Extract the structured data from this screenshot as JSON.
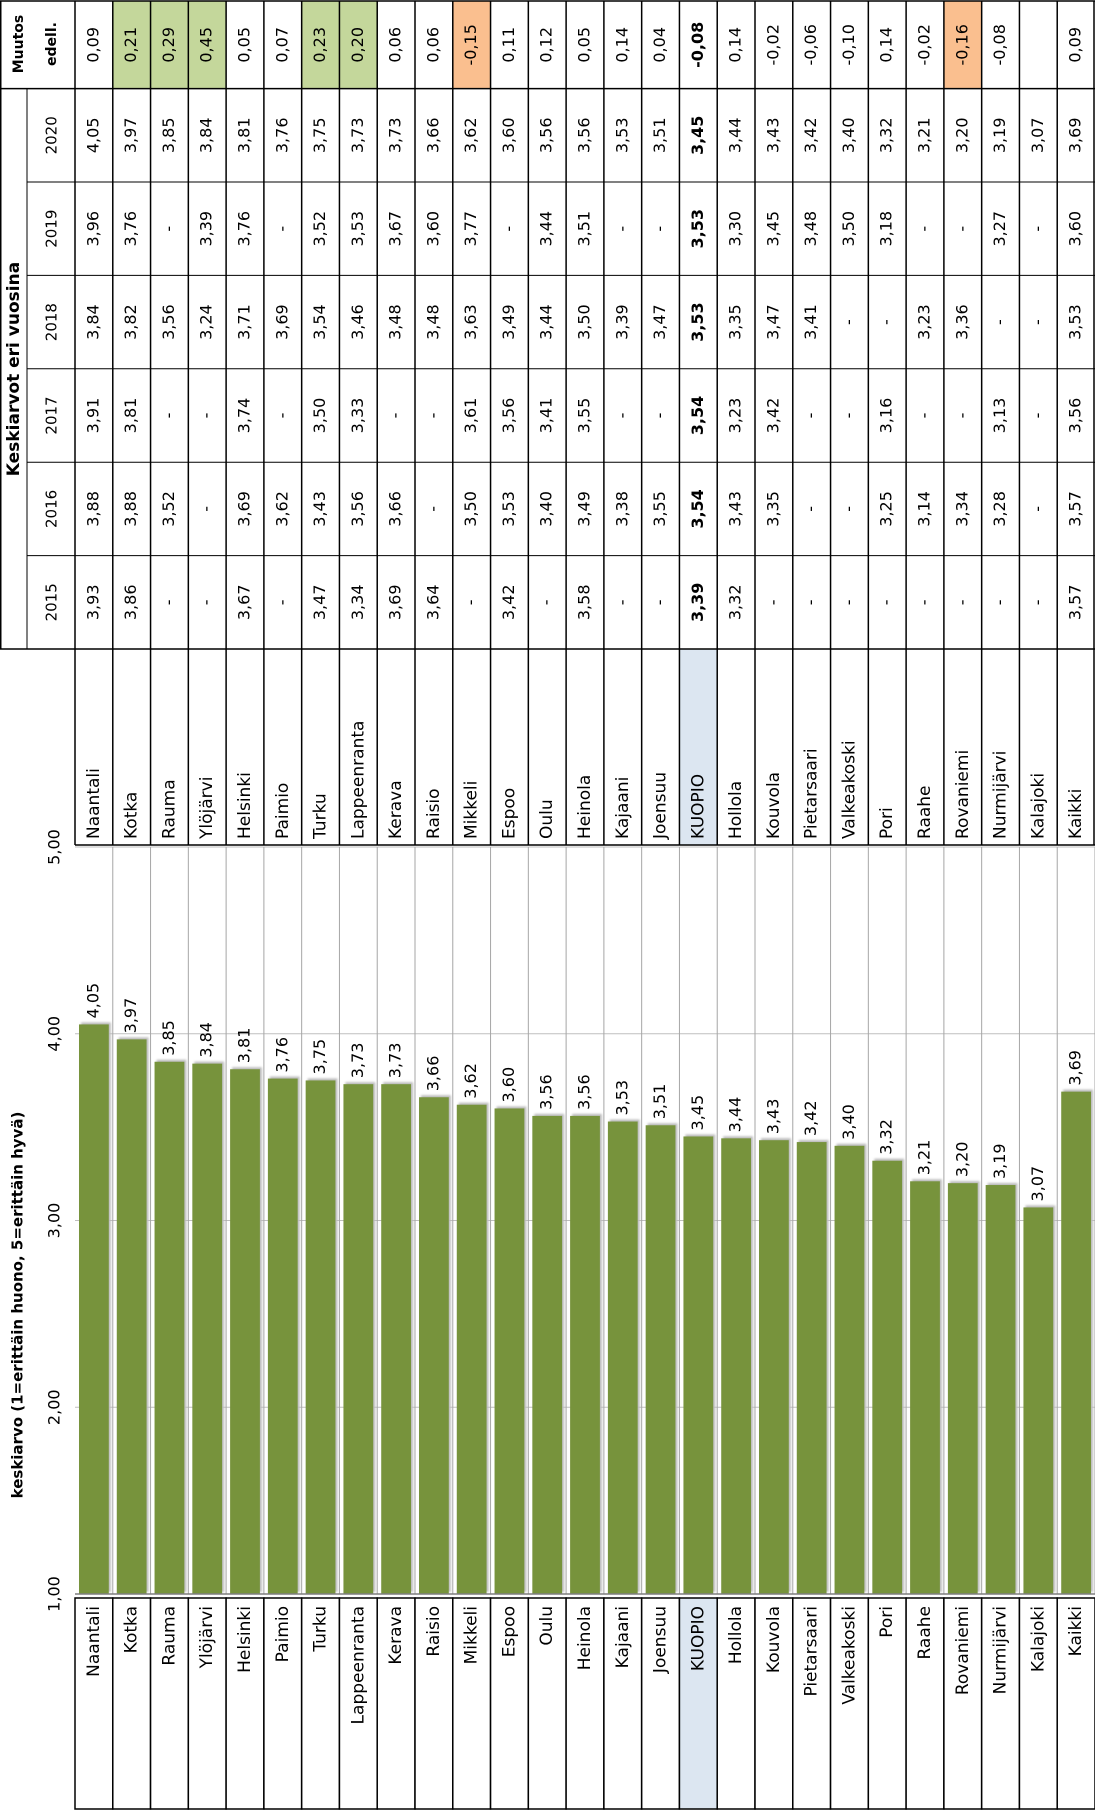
{
  "chart_data": {
    "type": "bar",
    "y_label": "keskiarvo (1=erittäin huono, 5=erittäin hyvä)",
    "categories": [
      "Naantali",
      "Kotka",
      "Rauma",
      "Ylöjärvi",
      "Helsinki",
      "Paimio",
      "Turku",
      "Lappeenranta",
      "Kerava",
      "Raisio",
      "Mikkeli",
      "Espoo",
      "Oulu",
      "Heinola",
      "Kajaani",
      "Joensuu",
      "KUOPIO",
      "Hollola",
      "Kouvola",
      "Pietarsaari",
      "Valkeakoski",
      "Pori",
      "Raahe",
      "Rovaniemi",
      "Nurmijärvi",
      "Kalajoki",
      "Kaikki"
    ],
    "values": [
      4.05,
      3.97,
      3.85,
      3.84,
      3.81,
      3.76,
      3.75,
      3.73,
      3.73,
      3.66,
      3.62,
      3.6,
      3.56,
      3.56,
      3.53,
      3.51,
      3.45,
      3.44,
      3.43,
      3.42,
      3.4,
      3.32,
      3.21,
      3.2,
      3.19,
      3.07,
      3.69
    ],
    "value_labels": [
      "4,05",
      "3,97",
      "3,85",
      "3,84",
      "3,81",
      "3,76",
      "3,75",
      "3,73",
      "3,73",
      "3,66",
      "3,62",
      "3,60",
      "3,56",
      "3,56",
      "3,53",
      "3,51",
      "3,45",
      "3,44",
      "3,43",
      "3,42",
      "3,40",
      "3,32",
      "3,21",
      "3,20",
      "3,19",
      "3,07",
      "3,69"
    ],
    "color": "#77933c",
    "ylim": [
      1,
      5
    ],
    "yticks": [
      {
        "value": 1,
        "label": "1,00"
      },
      {
        "value": 2,
        "label": "2,00"
      },
      {
        "value": 3,
        "label": "3,00"
      },
      {
        "value": 4,
        "label": "4,00"
      },
      {
        "value": 5,
        "label": "5,00"
      }
    ],
    "grid": true,
    "highlight": "KUOPIO",
    "highlight_color": "#dce6f1"
  },
  "table": {
    "title": "Keskiarvot eri vuosina",
    "columns": [
      "2015",
      "2016",
      "2017",
      "2018",
      "2019",
      "2020"
    ],
    "change_header": [
      "Muutos",
      "edell."
    ],
    "highlight": "KUOPIO",
    "highlight_color": "#dce6f1",
    "rows": [
      {
        "name": "Naantali",
        "values": [
          "3,93",
          "3,88",
          "3,91",
          "3,84",
          "3,96",
          "4,05"
        ],
        "change": "0,09"
      },
      {
        "name": "Kotka",
        "values": [
          "3,86",
          "3,88",
          "3,81",
          "3,82",
          "3,76",
          "3,97"
        ],
        "change": "0,21",
        "change_color": "#c4d79b"
      },
      {
        "name": "Rauma",
        "values": [
          "-",
          "3,52",
          "-",
          "3,56",
          "-",
          "3,85"
        ],
        "change": "0,29",
        "change_color": "#c4d79b"
      },
      {
        "name": "Ylöjärvi",
        "values": [
          "-",
          "-",
          "-",
          "3,24",
          "3,39",
          "3,84"
        ],
        "change": "0,45",
        "change_color": "#c4d79b"
      },
      {
        "name": "Helsinki",
        "values": [
          "3,67",
          "3,69",
          "3,74",
          "3,71",
          "3,76",
          "3,81"
        ],
        "change": "0,05"
      },
      {
        "name": "Paimio",
        "values": [
          "-",
          "3,62",
          "-",
          "3,69",
          "-",
          "3,76"
        ],
        "change": "0,07"
      },
      {
        "name": "Turku",
        "values": [
          "3,47",
          "3,43",
          "3,50",
          "3,54",
          "3,52",
          "3,75"
        ],
        "change": "0,23",
        "change_color": "#c4d79b"
      },
      {
        "name": "Lappeenranta",
        "values": [
          "3,34",
          "3,56",
          "3,33",
          "3,46",
          "3,53",
          "3,73"
        ],
        "change": "0,20",
        "change_color": "#c4d79b"
      },
      {
        "name": "Kerava",
        "values": [
          "3,69",
          "3,66",
          "-",
          "3,48",
          "3,67",
          "3,73"
        ],
        "change": "0,06"
      },
      {
        "name": "Raisio",
        "values": [
          "3,64",
          "-",
          "-",
          "3,48",
          "3,60",
          "3,66"
        ],
        "change": "0,06"
      },
      {
        "name": "Mikkeli",
        "values": [
          "-",
          "3,50",
          "3,61",
          "3,63",
          "3,77",
          "3,62"
        ],
        "change": "-0,15",
        "change_color": "#fabf8f"
      },
      {
        "name": "Espoo",
        "values": [
          "3,42",
          "3,53",
          "3,56",
          "3,49",
          "-",
          "3,60"
        ],
        "change": "0,11"
      },
      {
        "name": "Oulu",
        "values": [
          "-",
          "3,40",
          "3,41",
          "3,44",
          "3,44",
          "3,56"
        ],
        "change": "0,12"
      },
      {
        "name": "Heinola",
        "values": [
          "3,58",
          "3,49",
          "3,55",
          "3,50",
          "3,51",
          "3,56"
        ],
        "change": "0,05"
      },
      {
        "name": "Kajaani",
        "values": [
          "-",
          "3,38",
          "-",
          "3,39",
          "-",
          "3,53"
        ],
        "change": "0,14"
      },
      {
        "name": "Joensuu",
        "values": [
          "-",
          "3,55",
          "-",
          "3,47",
          "-",
          "3,51"
        ],
        "change": "0,04"
      },
      {
        "name": "KUOPIO",
        "values": [
          "3,39",
          "3,54",
          "3,54",
          "3,53",
          "3,53",
          "3,45"
        ],
        "change": "-0,08"
      },
      {
        "name": "Hollola",
        "values": [
          "3,32",
          "3,43",
          "3,23",
          "3,35",
          "3,30",
          "3,44"
        ],
        "change": "0,14"
      },
      {
        "name": "Kouvola",
        "values": [
          "-",
          "3,35",
          "3,42",
          "3,47",
          "3,45",
          "3,43"
        ],
        "change": "-0,02"
      },
      {
        "name": "Pietarsaari",
        "values": [
          "-",
          "-",
          "-",
          "3,41",
          "3,48",
          "3,42"
        ],
        "change": "-0,06"
      },
      {
        "name": "Valkeakoski",
        "values": [
          "-",
          "-",
          "-",
          "-",
          "3,50",
          "3,40"
        ],
        "change": "-0,10"
      },
      {
        "name": "Pori",
        "values": [
          "-",
          "3,25",
          "3,16",
          "-",
          "3,18",
          "3,32"
        ],
        "change": "0,14"
      },
      {
        "name": "Raahe",
        "values": [
          "-",
          "3,14",
          "-",
          "3,23",
          "-",
          "3,21"
        ],
        "change": "-0,02"
      },
      {
        "name": "Rovaniemi",
        "values": [
          "-",
          "3,34",
          "-",
          "3,36",
          "-",
          "3,20"
        ],
        "change": "-0,16",
        "change_color": "#fabf8f"
      },
      {
        "name": "Nurmijärvi",
        "values": [
          "-",
          "3,28",
          "3,13",
          "-",
          "3,27",
          "3,19"
        ],
        "change": "-0,08"
      },
      {
        "name": "Kalajoki",
        "values": [
          "-",
          "-",
          "-",
          "-",
          "-",
          "3,07"
        ]
      },
      {
        "name": "Kaikki",
        "values": [
          "3,57",
          "3,57",
          "3,56",
          "3,53",
          "3,60",
          "3,69"
        ],
        "change": "0,09"
      }
    ]
  }
}
